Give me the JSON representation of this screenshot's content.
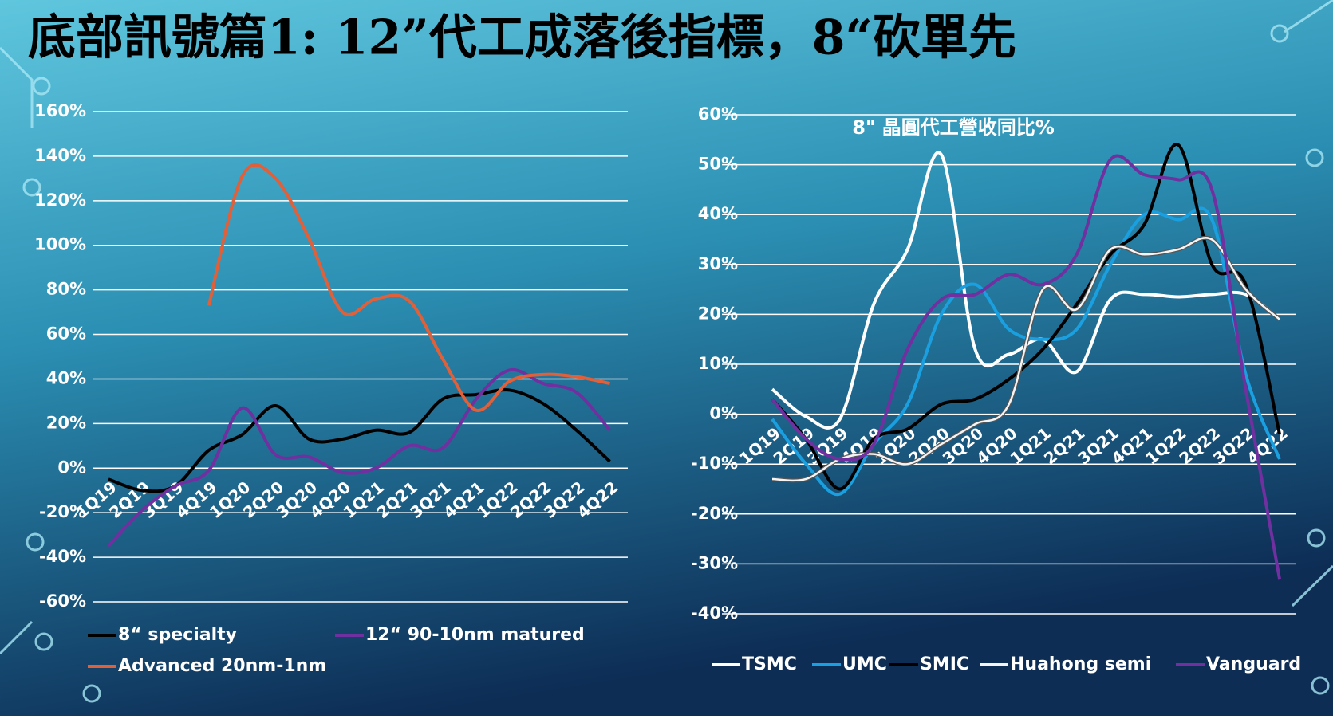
{
  "title": "底部訊號篇1: 12”代工成落後指標，8“砍單先",
  "chart_data": [
    {
      "type": "line",
      "categories": [
        "1Q19",
        "2Q19",
        "3Q19",
        "4Q19",
        "1Q20",
        "2Q20",
        "3Q20",
        "4Q20",
        "1Q21",
        "2Q21",
        "3Q21",
        "4Q21",
        "1Q22",
        "2Q22",
        "3Q22",
        "4Q22"
      ],
      "ylim": [
        -60,
        160
      ],
      "yticks": [
        {
          "value": -60,
          "label": "-60%"
        },
        {
          "value": -40,
          "label": "-40%"
        },
        {
          "value": -20,
          "label": "-20%"
        },
        {
          "value": 0,
          "label": "0%"
        },
        {
          "value": 20,
          "label": "20%"
        },
        {
          "value": 40,
          "label": "40%"
        },
        {
          "value": 60,
          "label": "60%"
        },
        {
          "value": 80,
          "label": "80%"
        },
        {
          "value": 100,
          "label": "100%"
        },
        {
          "value": 120,
          "label": "120%"
        },
        {
          "value": 140,
          "label": "140%"
        },
        {
          "value": 160,
          "label": "160%"
        }
      ],
      "grid": true,
      "series": [
        {
          "name": "8“ specialty",
          "color": "#000000",
          "values": [
            -5,
            -10,
            -8,
            8,
            15,
            28,
            13,
            13,
            17,
            16,
            31,
            33,
            35,
            29,
            17,
            3
          ]
        },
        {
          "name": "12“ 90-10nm matured",
          "color": "#7030a0",
          "values": [
            -35,
            -19,
            -8,
            -1,
            27,
            6,
            5,
            -2,
            0,
            10,
            9,
            31,
            44,
            38,
            34,
            17
          ]
        },
        {
          "name": "Advanced 20nm-1nm",
          "color": "#e0603a",
          "values": [
            null,
            null,
            null,
            73,
            131,
            130,
            103,
            70,
            76,
            75,
            49,
            26,
            39,
            42,
            41,
            38
          ]
        }
      ]
    },
    {
      "type": "line",
      "title": "8\" 晶圓代工營收同比%",
      "categories": [
        "1Q19",
        "2Q19",
        "3Q19",
        "4Q19",
        "1Q20",
        "2Q20",
        "3Q20",
        "4Q20",
        "1Q21",
        "2Q21",
        "3Q21",
        "4Q21",
        "1Q22",
        "2Q22",
        "3Q22",
        "4Q22"
      ],
      "ylim": [
        -40,
        60
      ],
      "yticks": [
        {
          "value": -40,
          "label": "-40%"
        },
        {
          "value": -30,
          "label": "-30%"
        },
        {
          "value": -20,
          "label": "-20%"
        },
        {
          "value": -10,
          "label": "-10%"
        },
        {
          "value": 0,
          "label": "0%"
        },
        {
          "value": 10,
          "label": "10%"
        },
        {
          "value": 20,
          "label": "20%"
        },
        {
          "value": 30,
          "label": "30%"
        },
        {
          "value": 40,
          "label": "40%"
        },
        {
          "value": 50,
          "label": "50%"
        },
        {
          "value": 60,
          "label": "60%"
        }
      ],
      "grid": true,
      "series": [
        {
          "name": "TSMC",
          "color": "#ffffff",
          "values": [
            5,
            -0.5,
            -1,
            22,
            33,
            52,
            13,
            12,
            15,
            8.5,
            23,
            24,
            23.5,
            24,
            24,
            19
          ]
        },
        {
          "name": "UMC",
          "color": "#1aa0e0",
          "values": [
            -1,
            -10,
            -16,
            -6,
            2,
            20,
            26,
            17,
            15,
            17,
            30,
            40,
            39,
            39,
            8,
            -9
          ]
        },
        {
          "name": "SMIC",
          "color": "#000000",
          "values": [
            3,
            -5,
            -15,
            -5,
            -3,
            2,
            3,
            7,
            13,
            22,
            32,
            38,
            54,
            30,
            26,
            -4
          ]
        },
        {
          "name": "Huahong semi",
          "color": "#f4f4f4",
          "values": [
            -13,
            -13,
            -9,
            -8,
            -10,
            -6,
            -2,
            2,
            25,
            21,
            33,
            32,
            33,
            35,
            25,
            19
          ]
        },
        {
          "name": "Vanguard",
          "color": "#7030a0",
          "values": [
            3,
            -5,
            -9,
            -6,
            13,
            23,
            24,
            28,
            26,
            32,
            51,
            48,
            47,
            45,
            5,
            -33
          ]
        }
      ]
    }
  ]
}
